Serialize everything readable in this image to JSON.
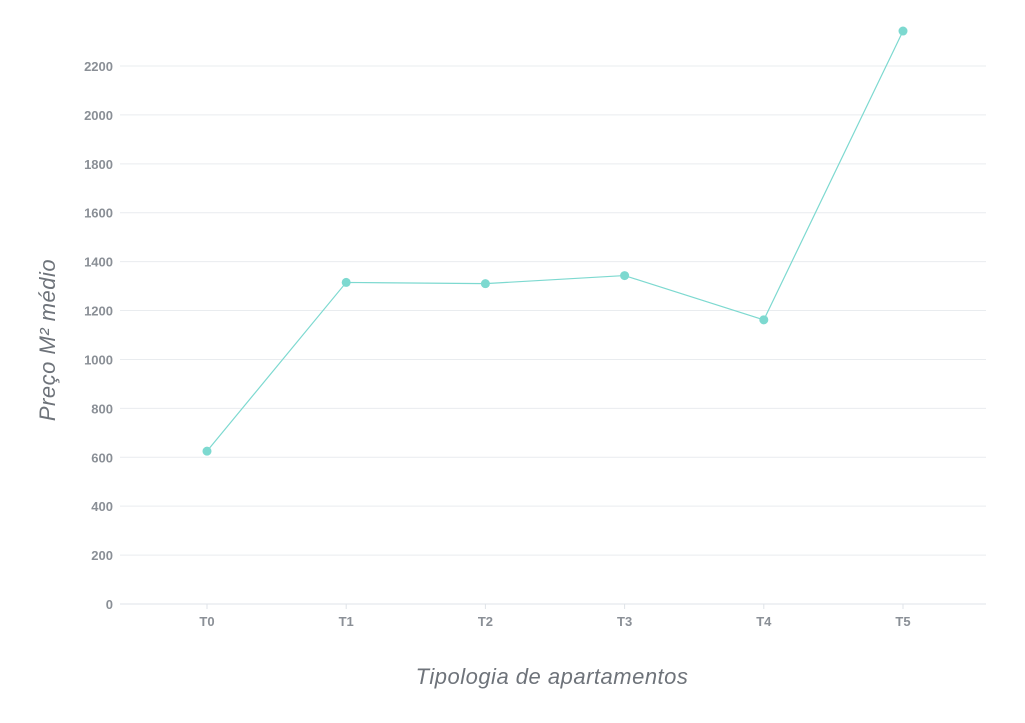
{
  "chart_data": {
    "type": "line",
    "title": "",
    "xlabel": "Tipologia de apartamentos",
    "ylabel": "Preço M² médio",
    "categories": [
      "T0",
      "T1",
      "T2",
      "T3",
      "T4",
      "T5"
    ],
    "series": [
      {
        "values": [
          625,
          1315,
          1310,
          1343,
          1162,
          2343
        ]
      }
    ],
    "ylim": [
      0,
      2300
    ],
    "yticks": [
      0,
      200,
      400,
      600,
      800,
      1000,
      1200,
      1400,
      1600,
      1800,
      2000,
      2200
    ],
    "grid": true,
    "legend": "none",
    "colors": {
      "series": "#7dd9d0",
      "grid": "#e9ecef",
      "text": "#8a8f96",
      "axis_title": "#6e737a"
    }
  }
}
